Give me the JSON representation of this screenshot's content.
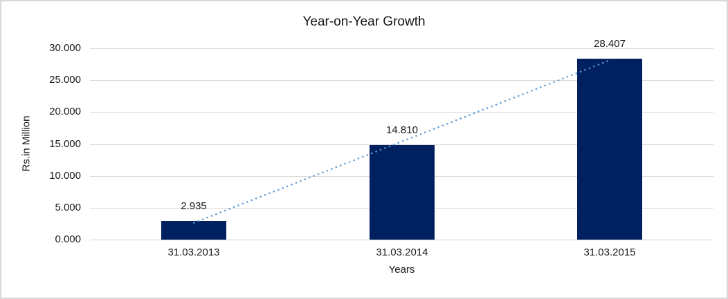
{
  "frame": {
    "background": "#ffffff",
    "border_color": "#d8d8d8"
  },
  "chart_data": {
    "type": "bar",
    "title": "Year-on-Year Growth",
    "xlabel": "Years",
    "ylabel": "Rs.in Million",
    "categories": [
      "31.03.2013",
      "31.03.2014",
      "31.03.2015"
    ],
    "series": [
      {
        "name": "Year-on-Year Growth",
        "values": [
          2935,
          14810,
          28407
        ],
        "value_labels": [
          "2.935",
          "14.810",
          "28.407"
        ]
      }
    ],
    "y_axis": {
      "min": 0,
      "max": 30000,
      "tick_interval": 5000,
      "tick_labels": [
        "0.000",
        "5.000",
        "10.000",
        "15.000",
        "20.000",
        "25.000",
        "30.000"
      ]
    },
    "ylim": [
      0,
      30000
    ],
    "grid": true,
    "legend": false,
    "bar_color": "#002060",
    "gridline_color": "#d9d9d9",
    "trendline": {
      "type": "linear",
      "style": "dotted",
      "color": "#5b9bd5"
    }
  }
}
